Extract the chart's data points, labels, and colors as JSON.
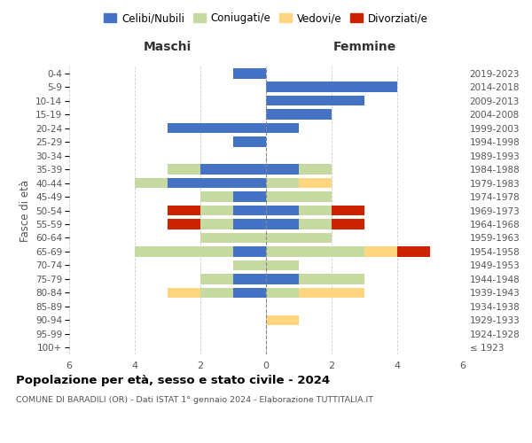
{
  "age_groups": [
    "100+",
    "95-99",
    "90-94",
    "85-89",
    "80-84",
    "75-79",
    "70-74",
    "65-69",
    "60-64",
    "55-59",
    "50-54",
    "45-49",
    "40-44",
    "35-39",
    "30-34",
    "25-29",
    "20-24",
    "15-19",
    "10-14",
    "5-9",
    "0-4"
  ],
  "birth_years": [
    "≤ 1923",
    "1924-1928",
    "1929-1933",
    "1934-1938",
    "1939-1943",
    "1944-1948",
    "1949-1953",
    "1954-1958",
    "1959-1963",
    "1964-1968",
    "1969-1973",
    "1974-1978",
    "1979-1983",
    "1984-1988",
    "1989-1993",
    "1994-1998",
    "1999-2003",
    "2004-2008",
    "2009-2013",
    "2014-2018",
    "2019-2023"
  ],
  "colors": {
    "celibi": "#4472C4",
    "coniugati": "#c5d9a0",
    "vedovi": "#FFD580",
    "divorziati": "#cc2200"
  },
  "maschi": {
    "celibi": [
      0,
      0,
      0,
      0,
      1,
      1,
      0,
      1,
      0,
      1,
      1,
      1,
      3,
      2,
      0,
      1,
      3,
      0,
      0,
      0,
      1
    ],
    "coniugati": [
      0,
      0,
      0,
      0,
      1,
      1,
      1,
      3,
      2,
      1,
      1,
      1,
      1,
      1,
      0,
      0,
      0,
      0,
      0,
      0,
      0
    ],
    "vedovi": [
      0,
      0,
      0,
      0,
      1,
      0,
      0,
      0,
      0,
      0,
      0,
      0,
      0,
      0,
      0,
      0,
      0,
      0,
      0,
      0,
      0
    ],
    "divorziati": [
      0,
      0,
      0,
      0,
      0,
      0,
      0,
      0,
      0,
      1,
      1,
      0,
      0,
      0,
      0,
      0,
      0,
      0,
      0,
      0,
      0
    ]
  },
  "femmine": {
    "celibi": [
      0,
      0,
      0,
      0,
      0,
      1,
      0,
      0,
      0,
      1,
      1,
      0,
      0,
      1,
      0,
      0,
      1,
      2,
      3,
      4,
      0
    ],
    "coniugati": [
      0,
      0,
      0,
      0,
      1,
      2,
      1,
      3,
      2,
      1,
      1,
      2,
      1,
      1,
      0,
      0,
      0,
      0,
      0,
      0,
      0
    ],
    "vedovi": [
      0,
      0,
      1,
      0,
      2,
      0,
      0,
      1,
      0,
      0,
      0,
      0,
      1,
      0,
      0,
      0,
      0,
      0,
      0,
      0,
      0
    ],
    "divorziati": [
      0,
      0,
      0,
      0,
      0,
      0,
      0,
      1,
      0,
      1,
      1,
      0,
      0,
      0,
      0,
      0,
      0,
      0,
      0,
      0,
      0
    ]
  },
  "title": "Popolazione per età, sesso e stato civile - 2024",
  "subtitle": "COMUNE DI BARADILI (OR) - Dati ISTAT 1° gennaio 2024 - Elaborazione TUTTITALIA.IT",
  "xlabel_left": "Maschi",
  "xlabel_right": "Femmine",
  "ylabel_left": "Fasce di età",
  "xlim": 6,
  "legend_labels": [
    "Celibi/Nubili",
    "Coniugati/e",
    "Vedovi/e",
    "Divorziati/e"
  ],
  "bg_color": "#ffffff",
  "grid_color": "#cccccc"
}
